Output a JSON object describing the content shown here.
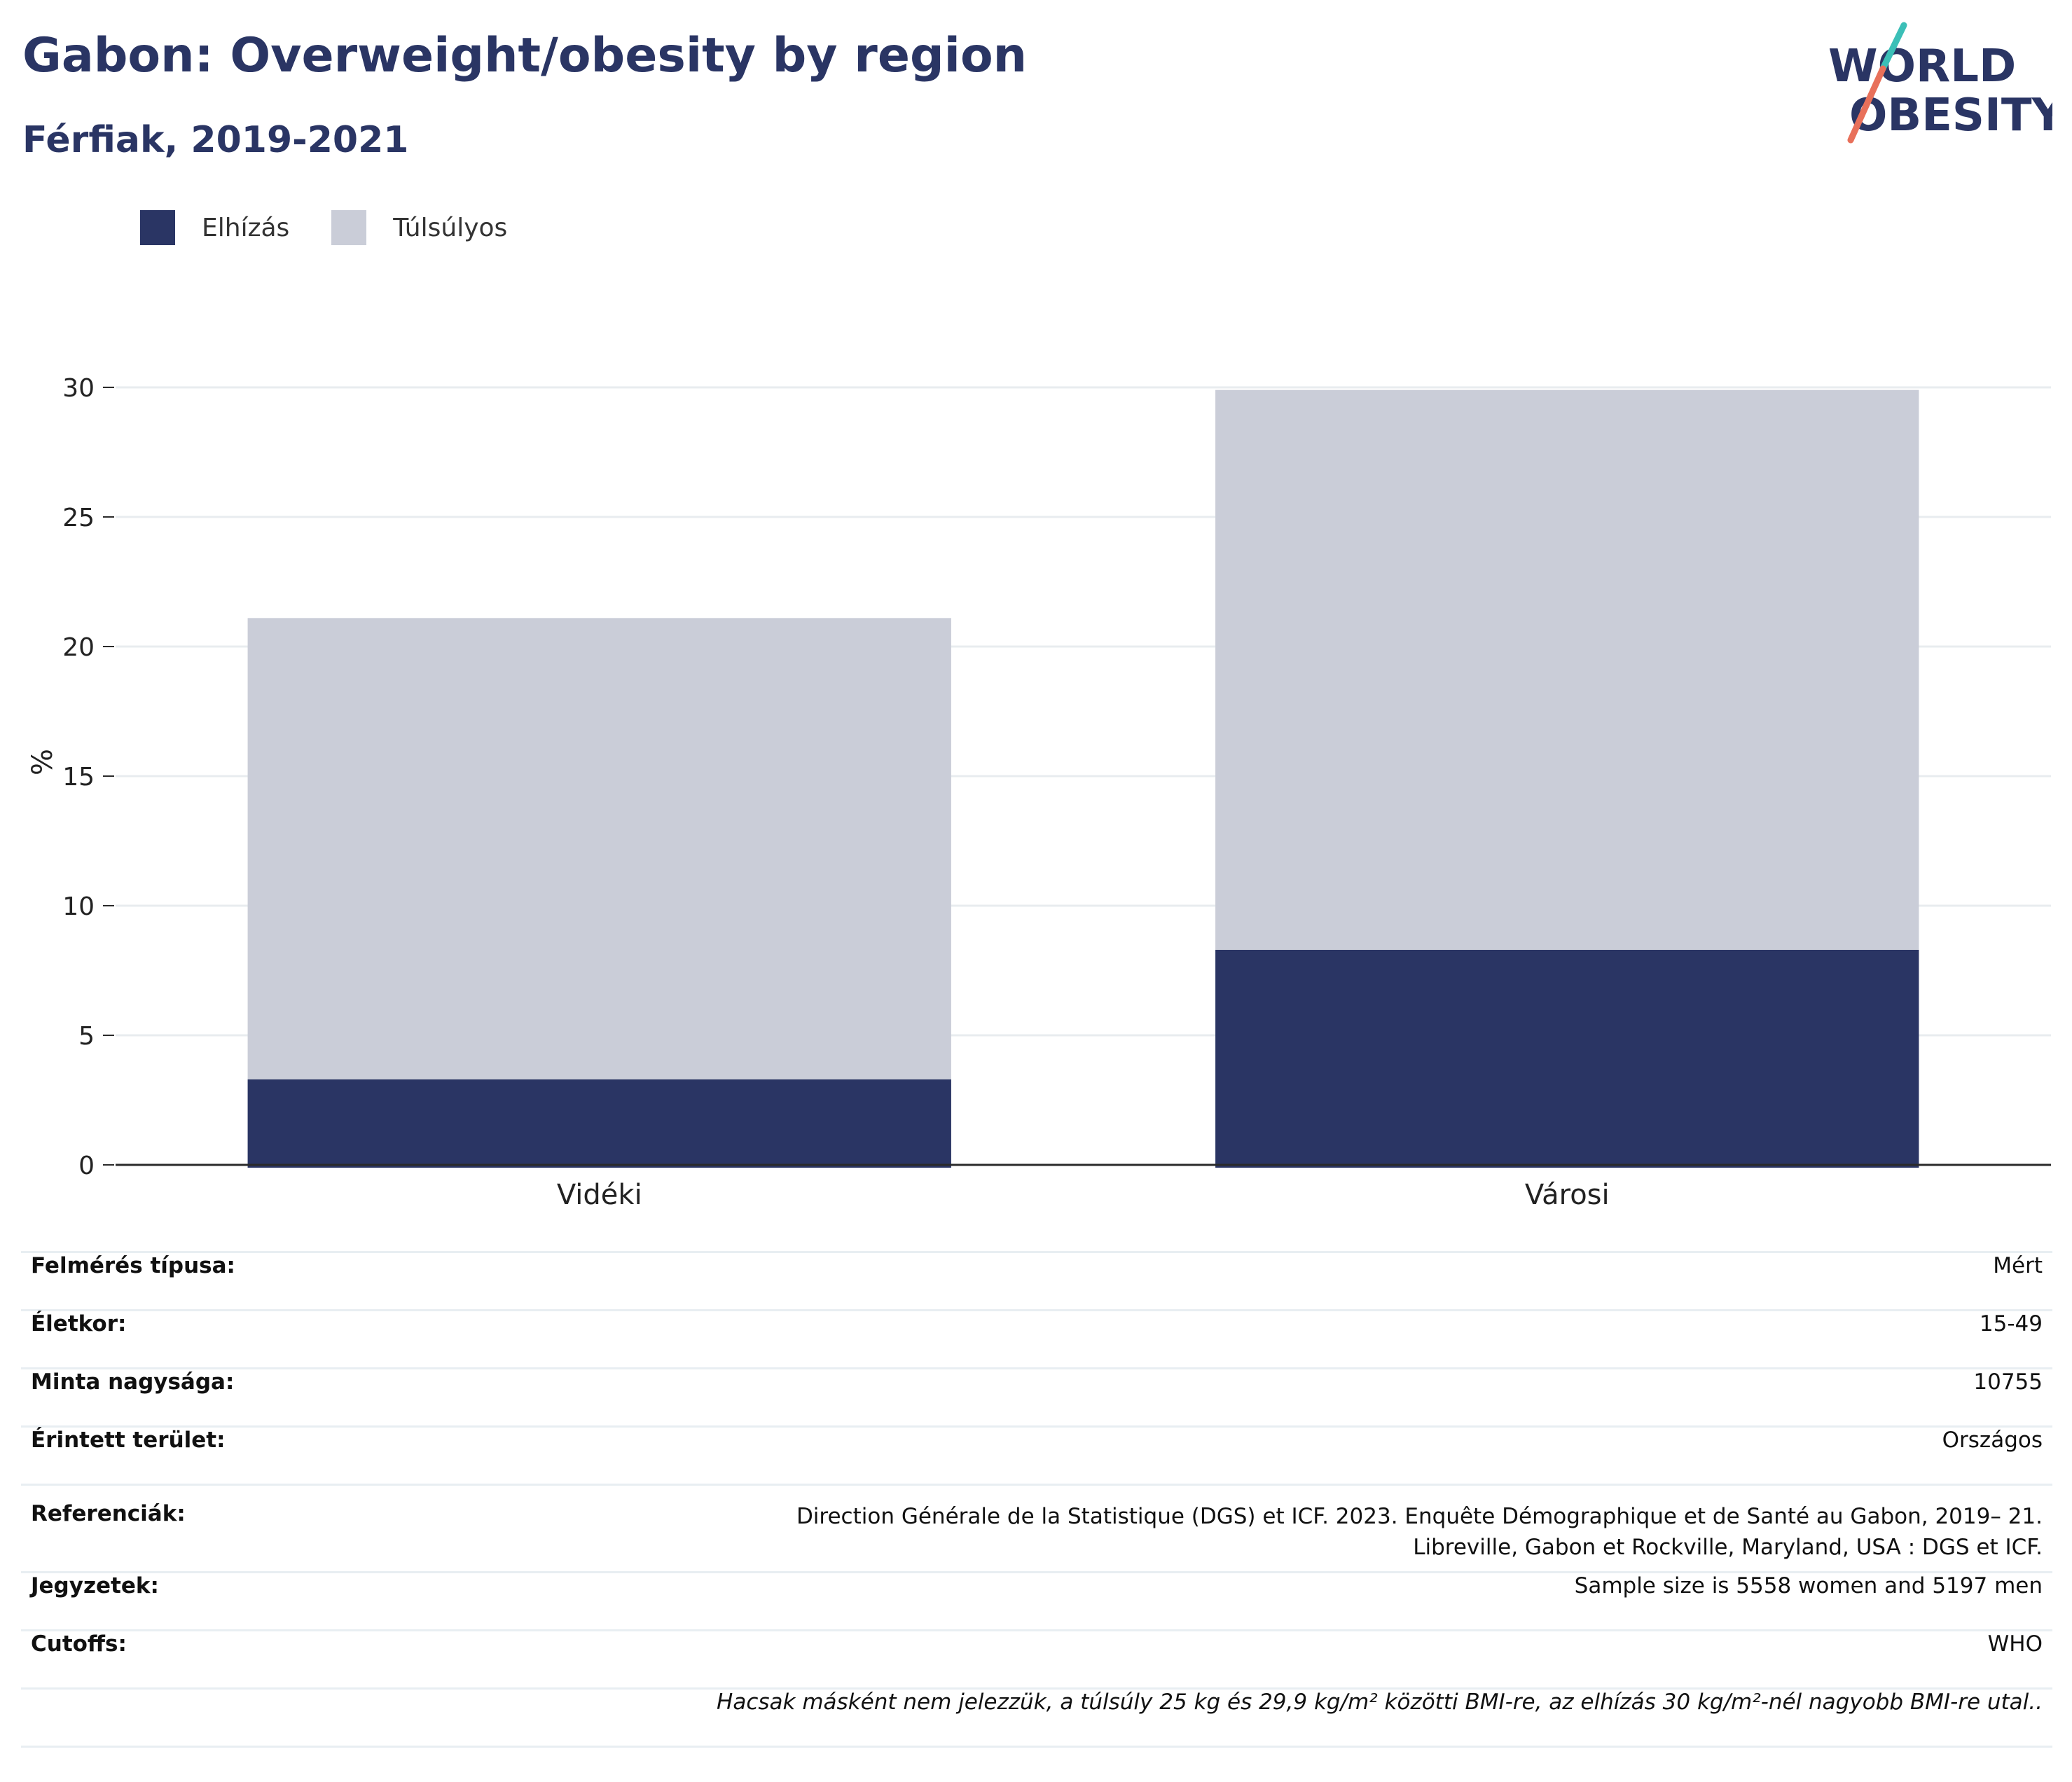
{
  "header": {
    "title": "Gabon: Overweight/obesity by region",
    "subtitle": "Férfiak, 2019-2021"
  },
  "logo": {
    "line1": "WORLD",
    "line2": "OBESITY"
  },
  "colors": {
    "obesity": "#2a3564",
    "overweight": "#cacdd8",
    "accent_teal": "#3bbfb7",
    "accent_coral": "#e8705a"
  },
  "chart_data": {
    "type": "bar",
    "stacked": true,
    "categories": [
      "Vidéki",
      "Városi"
    ],
    "series": [
      {
        "name": "Elhízás",
        "values": [
          3.3,
          8.3
        ]
      },
      {
        "name": "Túlsúlyos",
        "values": [
          17.8,
          21.6
        ]
      }
    ],
    "ylabel": "%",
    "ylim": [
      0,
      30
    ],
    "yticks": [
      0,
      5,
      10,
      15,
      20,
      25,
      30
    ],
    "grid": true,
    "legend": "top-left"
  },
  "info": {
    "rows": [
      {
        "key": "Felmérés típusa:",
        "value": "Mért"
      },
      {
        "key": "Életkor:",
        "value": "15-49"
      },
      {
        "key": "Minta nagysága:",
        "value": "10755"
      },
      {
        "key": "Érintett terület:",
        "value": "Országos"
      },
      {
        "key": "Referenciák:",
        "value": "Direction Générale de la Statistique (DGS) et ICF. 2023. Enquête Démographique et de Santé au Gabon, 2019– 21. Libreville, Gabon et Rockville, Maryland, USA : DGS et ICF."
      },
      {
        "key": "Jegyzetek:",
        "value": "Sample size is 5558 women and 5197 men"
      },
      {
        "key": "Cutoffs:",
        "value": "WHO"
      }
    ],
    "footnote": "Hacsak másként nem jelezzük, a túlsúly 25 kg és 29,9 kg/m² közötti BMI-re, az elhízás 30 kg/m²-nél nagyobb BMI-re utal.."
  }
}
